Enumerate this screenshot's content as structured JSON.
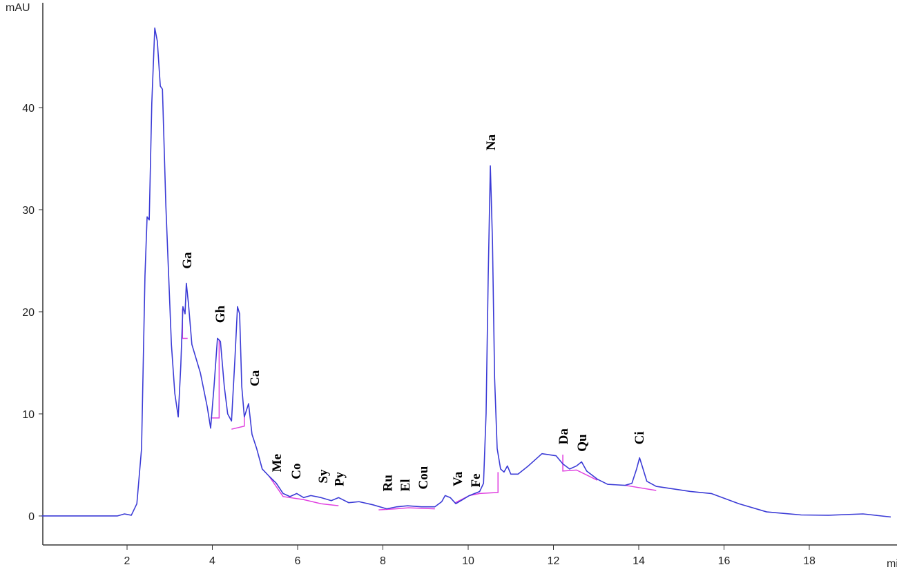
{
  "chart_data": {
    "type": "line",
    "ylabel": "mAU",
    "xlabel": "min",
    "xlim": [
      0,
      19.9
    ],
    "ylim": [
      -2.84,
      50.2
    ],
    "xticks": [
      2,
      4,
      6,
      8,
      10,
      12,
      14,
      16,
      18
    ],
    "yticks": [
      0,
      10,
      20,
      30,
      40
    ],
    "x": [
      0,
      1.77,
      1.94,
      2.1,
      2.23,
      2.34,
      2.42,
      2.47,
      2.52,
      2.58,
      2.65,
      2.71,
      2.78,
      2.83,
      2.91,
      3.04,
      3.12,
      3.2,
      3.26,
      3.31,
      3.36,
      3.39,
      3.44,
      3.52,
      3.72,
      3.88,
      3.96,
      4.04,
      4.12,
      4.19,
      4.28,
      4.36,
      4.45,
      4.53,
      4.59,
      4.64,
      4.69,
      4.75,
      4.85,
      4.93,
      5.04,
      5.17,
      5.33,
      5.5,
      5.66,
      5.82,
      5.98,
      6.14,
      6.31,
      6.55,
      6.79,
      6.96,
      7.2,
      7.44,
      7.76,
      8.09,
      8.33,
      8.58,
      8.9,
      9.22,
      9.38,
      9.46,
      9.58,
      9.71,
      9.87,
      10.03,
      10.27,
      10.36,
      10.42,
      10.47,
      10.52,
      10.57,
      10.62,
      10.68,
      10.76,
      10.84,
      10.92,
      11.0,
      11.17,
      11.41,
      11.73,
      12.06,
      12.22,
      12.38,
      12.54,
      12.66,
      12.78,
      13.03,
      13.27,
      13.68,
      13.84,
      13.95,
      14.02,
      14.08,
      14.19,
      14.41,
      15.21,
      15.7,
      16.35,
      17.0,
      17.81,
      18.45,
      19.26,
      19.91
    ],
    "series": [
      {
        "color": "#3b3bd6",
        "values": [
          0,
          0,
          0.2,
          0.07,
          1.2,
          6.6,
          23.5,
          29.3,
          29,
          40.4,
          47.8,
          46.5,
          42.1,
          41.8,
          30.4,
          16.8,
          12,
          9.7,
          14.7,
          20.5,
          19.8,
          22.8,
          20.8,
          16.8,
          14,
          10.7,
          8.6,
          12.7,
          17.4,
          17.1,
          12.7,
          10,
          9.3,
          15.4,
          20.5,
          19.8,
          12.7,
          9.7,
          11,
          8,
          6.6,
          4.6,
          3.9,
          3.2,
          2.2,
          1.9,
          2.2,
          1.8,
          2,
          1.8,
          1.5,
          1.8,
          1.3,
          1.4,
          1.1,
          0.7,
          0.9,
          1,
          0.9,
          0.9,
          1.4,
          2,
          1.8,
          1.2,
          1.6,
          2,
          2.4,
          3.2,
          10,
          23.5,
          34.3,
          26.9,
          13.5,
          6.6,
          4.6,
          4.3,
          4.9,
          4.1,
          4.1,
          4.9,
          6.1,
          5.9,
          5.1,
          4.6,
          4.9,
          5.3,
          4.4,
          3.6,
          3.1,
          3,
          3.2,
          4.6,
          5.7,
          4.9,
          3.4,
          2.9,
          2.4,
          2.2,
          1.2,
          0.4,
          0.1,
          0.07,
          0.2,
          -0.1
        ]
      }
    ],
    "baseline_color": "#e040e0",
    "baselines": [
      {
        "x": [
          3.3,
          3.3,
          3.42
        ],
        "y": [
          20.3,
          17.4,
          17.4
        ]
      },
      {
        "x": [
          3.96,
          4.16,
          4.16
        ],
        "y": [
          9.6,
          9.6,
          17.2
        ]
      },
      {
        "x": [
          4.45,
          4.75,
          4.75
        ],
        "y": [
          8.5,
          8.8,
          9.7
        ]
      },
      {
        "x": [
          5.33,
          5.66,
          6.14,
          6.55,
          6.96
        ],
        "y": [
          3.9,
          1.9,
          1.6,
          1.2,
          1.0
        ]
      },
      {
        "x": [
          7.9,
          8.3,
          8.6,
          9.22
        ],
        "y": [
          0.6,
          0.7,
          0.8,
          0.7
        ]
      },
      {
        "x": [
          9.7,
          10.03,
          10.27,
          10.7,
          10.7
        ],
        "y": [
          1.3,
          2.0,
          2.2,
          2.3,
          4.3
        ]
      },
      {
        "x": [
          12.22,
          12.22,
          12.54,
          13.03
        ],
        "y": [
          6,
          4.4,
          4.5,
          3.5
        ]
      },
      {
        "x": [
          13.68,
          14.41
        ],
        "y": [
          3.0,
          2.5
        ]
      }
    ],
    "annotations": [
      {
        "text": "Ga",
        "x": 3.39,
        "y": 24.2
      },
      {
        "text": "Gh",
        "x": 4.17,
        "y": 18.9
      },
      {
        "text": "Ca",
        "x": 4.98,
        "y": 12.7
      },
      {
        "text": "Me",
        "x": 5.5,
        "y": 4.3
      },
      {
        "text": "Co",
        "x": 5.95,
        "y": 3.6
      },
      {
        "text": "Sy",
        "x": 6.58,
        "y": 3.2
      },
      {
        "text": "Py",
        "x": 6.96,
        "y": 2.9
      },
      {
        "text": "Ru",
        "x": 8.1,
        "y": 2.4
      },
      {
        "text": "El",
        "x": 8.51,
        "y": 2.4
      },
      {
        "text": "Cou",
        "x": 8.93,
        "y": 2.6
      },
      {
        "text": "Va",
        "x": 9.74,
        "y": 2.9
      },
      {
        "text": "Fe",
        "x": 10.16,
        "y": 2.8
      },
      {
        "text": "Na",
        "x": 10.52,
        "y": 35.8
      },
      {
        "text": "Da",
        "x": 12.22,
        "y": 7
      },
      {
        "text": "Qu",
        "x": 12.66,
        "y": 6.3
      },
      {
        "text": "Ci",
        "x": 14.0,
        "y": 7
      }
    ]
  }
}
